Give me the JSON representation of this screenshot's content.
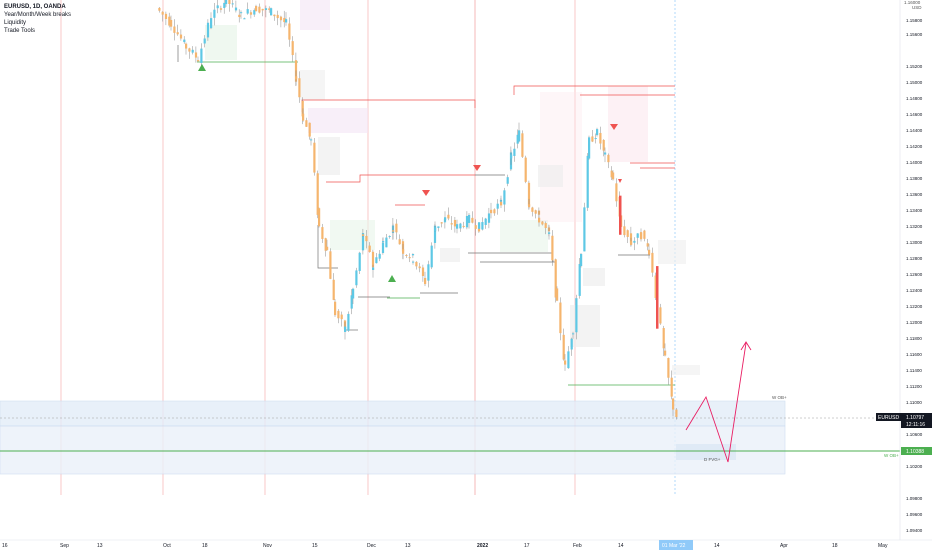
{
  "legend": {
    "symbol": "EURUSD, 1D, OANDA",
    "indicators": [
      "Year/Month/Week breaks",
      "Liquidity",
      "Trade Tools"
    ]
  },
  "price_scale": {
    "header_lines": [
      "1.16000",
      "USD"
    ],
    "ticks": [
      "1.15800",
      "1.15600",
      "1.15200",
      "1.15000",
      "1.14800",
      "1.14600",
      "1.14400",
      "1.14200",
      "1.14000",
      "1.13800",
      "1.13600",
      "1.13400",
      "1.13200",
      "1.13000",
      "1.12800",
      "1.12600",
      "1.12400",
      "1.12200",
      "1.12000",
      "1.11800",
      "1.11600",
      "1.11400",
      "1.11200",
      "1.11000",
      "1.10600",
      "1.10200",
      "1.09800",
      "1.09600",
      "1.09400"
    ],
    "current_symbol": "EURUSD",
    "current_price": "1.10797",
    "countdown": "12:11:16",
    "green_level": "1.10388"
  },
  "time_axis": {
    "labels": [
      "16",
      "Sep",
      "13",
      "Oct",
      "18",
      "Nov",
      "15",
      "Dec",
      "13",
      "2022",
      "17",
      "Feb",
      "14",
      "14",
      "Apr",
      "18",
      "May"
    ],
    "highlight": "01 Mar '22"
  },
  "annotations": {
    "zone_label_top": "W OB+",
    "zone_label_bottom": "W OB+",
    "fvg_label": "D FVG+"
  },
  "colors": {
    "up": "#5ec8e5",
    "down": "#f5b56e",
    "accent_red": "#ef5350",
    "accent_green": "#4caf50",
    "projection": "#e91e63",
    "zone": "#d6e4f5"
  },
  "chart_data": {
    "type": "candlestick",
    "title": "",
    "series": [
      {
        "name": "EURUSD",
        "ohlc_sample": [
          {
            "x": "Oct",
            "o": 1.16,
            "h": 1.164,
            "l": 1.155,
            "c": 1.159
          },
          {
            "x": "Nov",
            "o": 1.156,
            "h": 1.16,
            "l": 1.145,
            "c": 1.148
          },
          {
            "x": "Nov 15",
            "o": 1.144,
            "h": 1.146,
            "l": 1.126,
            "c": 1.129
          },
          {
            "x": "Nov 24",
            "o": 1.123,
            "h": 1.13,
            "l": 1.1186,
            "c": 1.12
          },
          {
            "x": "Dec",
            "o": 1.13,
            "h": 1.138,
            "l": 1.125,
            "c": 1.133
          },
          {
            "x": "Dec 13",
            "o": 1.128,
            "h": 1.135,
            "l": 1.123,
            "c": 1.13
          },
          {
            "x": "2022",
            "o": 1.134,
            "h": 1.138,
            "l": 1.13,
            "c": 1.135
          },
          {
            "x": "Jan 17",
            "o": 1.142,
            "h": 1.148,
            "l": 1.134,
            "c": 1.136
          },
          {
            "x": "Jan 28",
            "o": 1.12,
            "h": 1.124,
            "l": 1.112,
            "c": 1.115
          },
          {
            "x": "Feb",
            "o": 1.13,
            "h": 1.147,
            "l": 1.126,
            "c": 1.144
          },
          {
            "x": "Feb 14",
            "o": 1.136,
            "h": 1.14,
            "l": 1.13,
            "c": 1.132
          },
          {
            "x": "Feb 24",
            "o": 1.127,
            "h": 1.13,
            "l": 1.111,
            "c": 1.12
          },
          {
            "x": "Mar 01",
            "o": 1.115,
            "h": 1.117,
            "l": 1.105,
            "c": 1.108
          }
        ]
      }
    ],
    "ylim": [
      1.093,
      1.162
    ],
    "grid": false,
    "year_month_breaks": [
      "Sep",
      "Oct",
      "Nov",
      "Dec",
      "2022",
      "Feb"
    ],
    "levels": {
      "current": 1.10797,
      "green": 1.10388
    }
  }
}
